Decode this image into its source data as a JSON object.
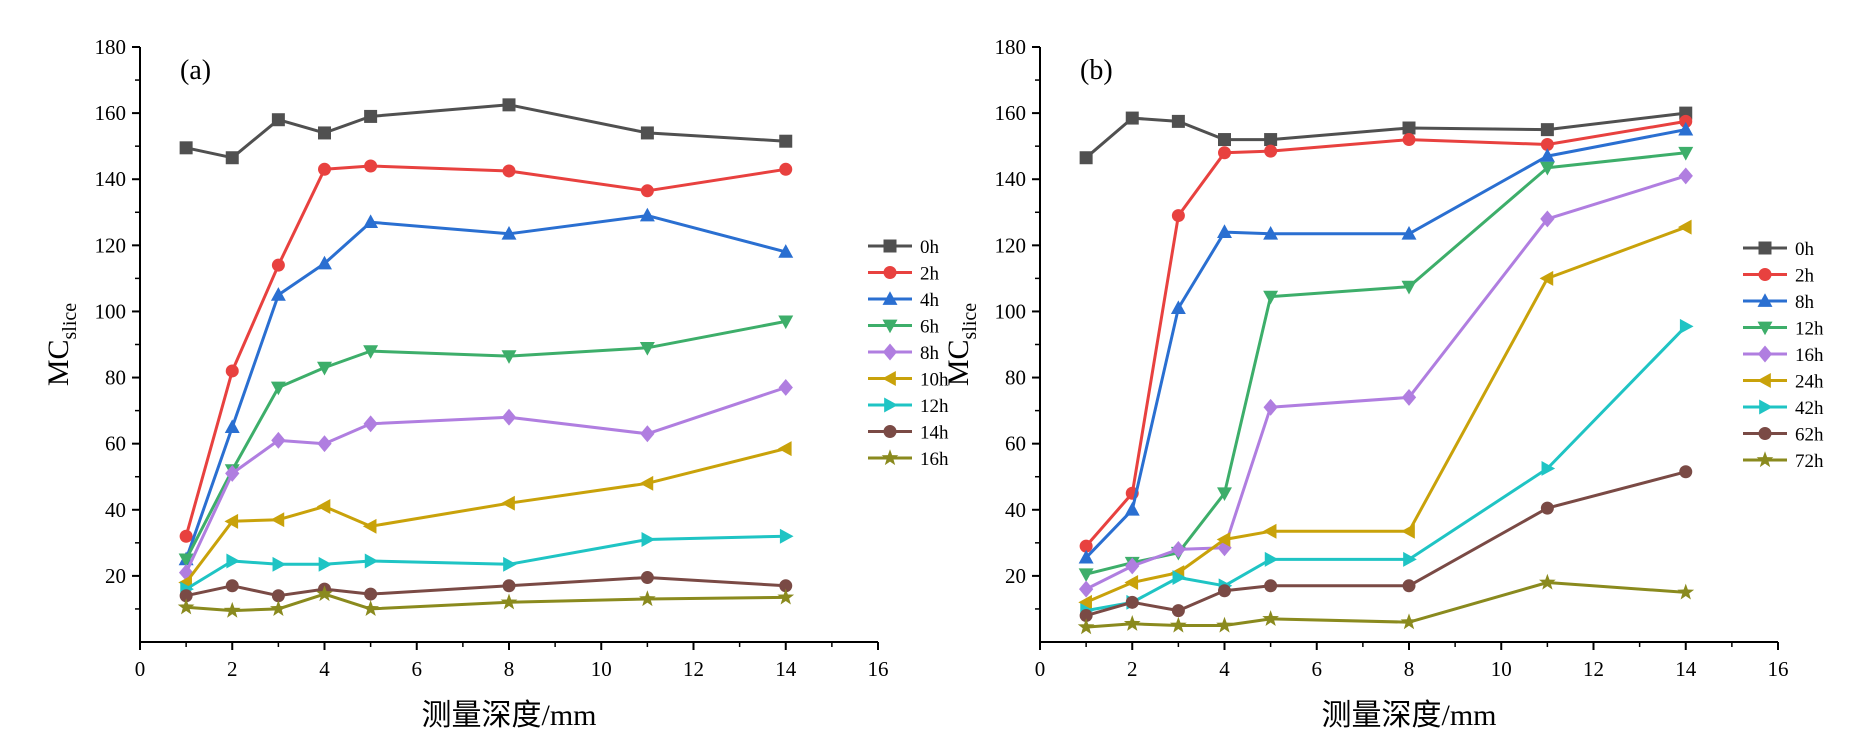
{
  "chart_data": [
    {
      "type": "line",
      "panel_label": "(a)",
      "xlabel": "测量深度/mm",
      "ylabel": "MC",
      "ylabel_sub": "slice",
      "xlim": [
        0,
        16
      ],
      "ylim": [
        0,
        180
      ],
      "xticks": [
        0,
        2,
        4,
        6,
        8,
        10,
        12,
        14,
        16
      ],
      "yticks": [
        20,
        40,
        60,
        80,
        100,
        120,
        140,
        160,
        180
      ],
      "grid": false,
      "legend_position": "right",
      "x": [
        1,
        2,
        3,
        4,
        5,
        8,
        11,
        14
      ],
      "series": [
        {
          "name": "0h",
          "color": "#505050",
          "marker": "square",
          "values": [
            149.5,
            146.5,
            158,
            154,
            159,
            162.5,
            154,
            151.5
          ]
        },
        {
          "name": "2h",
          "color": "#e8413f",
          "marker": "circle",
          "values": [
            32,
            82,
            114,
            143,
            144,
            142.5,
            136.5,
            143
          ]
        },
        {
          "name": "4h",
          "color": "#2a6fd1",
          "marker": "triangle-up",
          "values": [
            25,
            65,
            105,
            114.5,
            127,
            123.5,
            129,
            118
          ]
        },
        {
          "name": "6h",
          "color": "#3dae6a",
          "marker": "triangle-down",
          "values": [
            25,
            52,
            77,
            83,
            88,
            86.5,
            89,
            97
          ]
        },
        {
          "name": "8h",
          "color": "#b07ee0",
          "marker": "diamond",
          "values": [
            21,
            51,
            61,
            60,
            66,
            68,
            63,
            77
          ]
        },
        {
          "name": "10h",
          "color": "#c9a20a",
          "marker": "triangle-left",
          "values": [
            18,
            36.5,
            37,
            41,
            35,
            42,
            48,
            58.5
          ]
        },
        {
          "name": "12h",
          "color": "#1fc4c4",
          "marker": "triangle-right",
          "values": [
            16,
            24.5,
            23.5,
            23.5,
            24.5,
            23.5,
            31,
            32
          ]
        },
        {
          "name": "14h",
          "color": "#7a4a45",
          "marker": "circle",
          "values": [
            14,
            17,
            14,
            16,
            14.5,
            17,
            19.5,
            17
          ]
        },
        {
          "name": "16h",
          "color": "#8a8a1e",
          "marker": "star",
          "values": [
            10.5,
            9.5,
            10,
            14.5,
            10,
            12,
            13,
            13.5
          ]
        }
      ]
    },
    {
      "type": "line",
      "panel_label": "(b)",
      "xlabel": "测量深度/mm",
      "ylabel": "MC",
      "ylabel_sub": "slice",
      "xlim": [
        0,
        16
      ],
      "ylim": [
        0,
        180
      ],
      "xticks": [
        0,
        2,
        4,
        6,
        8,
        10,
        12,
        14,
        16
      ],
      "yticks": [
        20,
        40,
        60,
        80,
        100,
        120,
        140,
        160,
        180
      ],
      "grid": false,
      "legend_position": "right",
      "x": [
        1,
        2,
        3,
        4,
        5,
        8,
        11,
        14
      ],
      "series": [
        {
          "name": "0h",
          "color": "#505050",
          "marker": "square",
          "values": [
            146.5,
            158.5,
            157.5,
            152,
            152,
            155.5,
            155,
            160
          ]
        },
        {
          "name": "2h",
          "color": "#e8413f",
          "marker": "circle",
          "values": [
            29,
            45,
            129,
            148,
            148.5,
            152,
            150.5,
            157.5
          ]
        },
        {
          "name": "8h",
          "color": "#2a6fd1",
          "marker": "triangle-up",
          "values": [
            25.5,
            40,
            101,
            124,
            123.5,
            123.5,
            147,
            155
          ]
        },
        {
          "name": "12h",
          "color": "#3dae6a",
          "marker": "triangle-down",
          "values": [
            20.5,
            24,
            27,
            45,
            104.5,
            107.5,
            143.5,
            148
          ]
        },
        {
          "name": "16h",
          "color": "#b07ee0",
          "marker": "diamond",
          "values": [
            16,
            23,
            28,
            28.5,
            71,
            74,
            128,
            141
          ]
        },
        {
          "name": "24h",
          "color": "#c9a20a",
          "marker": "triangle-left",
          "values": [
            12,
            18,
            21,
            31,
            33.5,
            33.5,
            110,
            125.5
          ]
        },
        {
          "name": "42h",
          "color": "#1fc4c4",
          "marker": "triangle-right",
          "values": [
            9.5,
            12,
            19.5,
            17,
            25,
            25,
            52.5,
            95.5
          ]
        },
        {
          "name": "62h",
          "color": "#7a4a45",
          "marker": "circle",
          "values": [
            8,
            12,
            9.5,
            15.5,
            17,
            17,
            40.5,
            51.5
          ]
        },
        {
          "name": "72h",
          "color": "#8a8a1e",
          "marker": "star",
          "values": [
            4.5,
            5.5,
            5,
            5,
            7,
            6,
            18,
            15
          ]
        }
      ]
    }
  ]
}
